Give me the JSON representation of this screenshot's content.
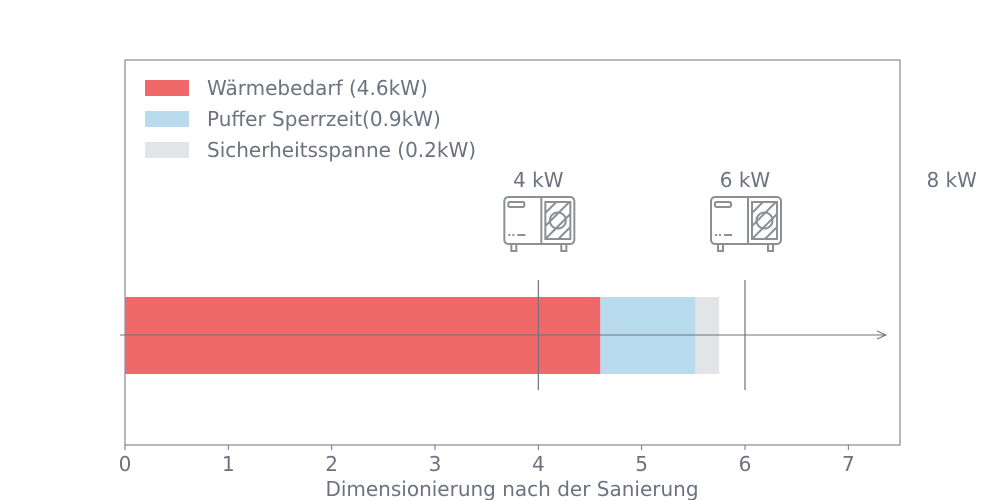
{
  "chart_data": {
    "type": "bar",
    "orientation": "horizontal",
    "stacked": true,
    "xlabel": "Dimensionierung nach der Sanierung",
    "xlim": [
      0,
      7.5
    ],
    "xticks": [
      "0",
      "1",
      "2",
      "3",
      "4",
      "5",
      "6",
      "7"
    ],
    "grid": false,
    "legend_position": "top-left",
    "series": [
      {
        "name": "Wärmebedarf (4.6kW)",
        "value": 4.6,
        "color": "#f0696a"
      },
      {
        "name": "Puffer Sperrzeit(0.9kW)",
        "value": 0.92,
        "color": "#b8dbed"
      },
      {
        "name": "Sicherheitsspanne (0.2kW)",
        "value": 0.23,
        "color": "#e3e4e8"
      }
    ],
    "markers": [
      {
        "label": "4 kW",
        "x": 4,
        "icon": "heat-pump-icon"
      },
      {
        "label": "6 kW",
        "x": 6,
        "icon": "heat-pump-icon"
      },
      {
        "label": "8 kW",
        "x": 8,
        "icon": ""
      }
    ]
  }
}
